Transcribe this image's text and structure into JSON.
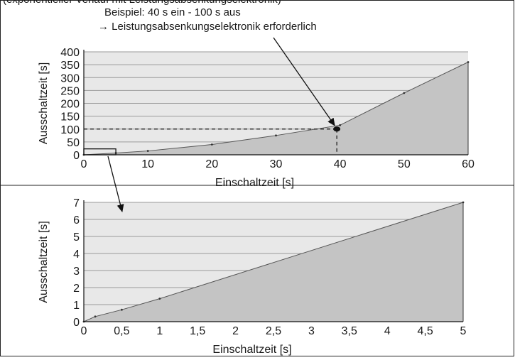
{
  "header_fragment": "(exponentieller Verlauf mit Leistungsabsenkungselektronik)",
  "annotation": {
    "line1": "Beispiel: 40 s ein - 100 s aus",
    "line2": "→ Leistungsabsenkungselektronik erforderlich"
  },
  "chart_data": [
    {
      "type": "area",
      "xlabel": "Einschaltzeit [s]",
      "ylabel": "Ausschaltzeit [s]",
      "xlim": [
        0,
        60
      ],
      "ylim": [
        0,
        400
      ],
      "x_ticks": [
        "0",
        "10",
        "20",
        "30",
        "40",
        "50",
        "60"
      ],
      "y_ticks": [
        "0",
        "50",
        "100",
        "150",
        "200",
        "250",
        "300",
        "350",
        "400"
      ],
      "grid": true,
      "series": [
        {
          "x": [
            0,
            5,
            10,
            20,
            30,
            40,
            50,
            60
          ],
          "y": [
            0,
            7,
            15,
            40,
            75,
            115,
            240,
            360
          ]
        }
      ],
      "highlight_point": {
        "x": 39.5,
        "y": 100
      }
    },
    {
      "type": "area",
      "xlabel": "Einschaltzeit [s]",
      "ylabel": "Ausschaltzeit [s]",
      "xlim": [
        0,
        5
      ],
      "ylim": [
        0,
        7
      ],
      "x_ticks": [
        "0",
        "0,5",
        "1",
        "1,5",
        "2",
        "2,5",
        "3",
        "3,5",
        "4",
        "4,5",
        "5"
      ],
      "y_ticks": [
        "0",
        "1",
        "2",
        "3",
        "4",
        "5",
        "6",
        "7"
      ],
      "grid": true,
      "series": [
        {
          "x": [
            0,
            0.15,
            0.5,
            1,
            5
          ],
          "y": [
            0,
            0.3,
            0.7,
            1.35,
            7
          ]
        }
      ]
    }
  ],
  "colors": {
    "plot_background": "#e8e8e8",
    "area_fill": "#c4c4c4",
    "grid_line": "#9a9a9a",
    "text": "#1a1a1a"
  }
}
